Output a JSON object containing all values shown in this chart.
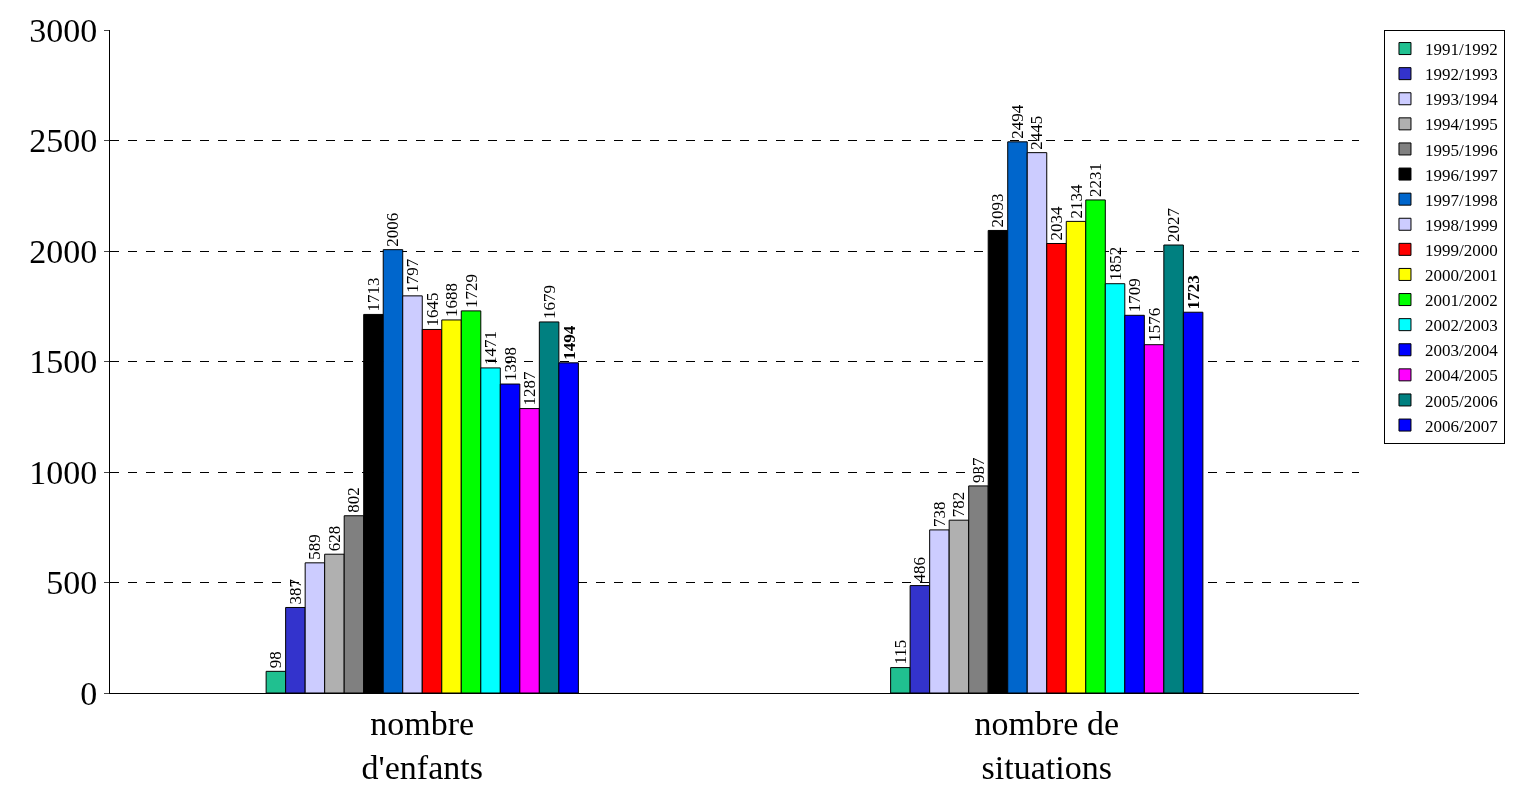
{
  "chart_data": {
    "type": "bar",
    "categories": [
      "nombre\nd'enfants",
      "nombre de\nsituations"
    ],
    "ylim": [
      0,
      3000
    ],
    "yticks": [
      0,
      500,
      1000,
      1500,
      2000,
      2500,
      3000
    ],
    "grid": "y",
    "legend": "right",
    "data_labels": true,
    "series": [
      {
        "name": "1991/1992",
        "color": "#20c090",
        "values": [
          98,
          115
        ]
      },
      {
        "name": "1992/1993",
        "color": "#3333cc",
        "values": [
          387,
          486
        ]
      },
      {
        "name": "1993/1994",
        "color": "#ccccff",
        "values": [
          589,
          738
        ]
      },
      {
        "name": "1994/1995",
        "color": "#b0b0b0",
        "values": [
          628,
          782
        ]
      },
      {
        "name": "1995/1996",
        "color": "#808080",
        "values": [
          802,
          937
        ]
      },
      {
        "name": "1996/1997",
        "color": "#000000",
        "values": [
          1713,
          2093
        ]
      },
      {
        "name": "1997/1998",
        "color": "#0066cc",
        "values": [
          2006,
          2494
        ]
      },
      {
        "name": "1998/1999",
        "color": "#ccccff",
        "values": [
          1797,
          2445
        ]
      },
      {
        "name": "1999/2000",
        "color": "#ff0000",
        "values": [
          1645,
          2034
        ]
      },
      {
        "name": "2000/2001",
        "color": "#ffff00",
        "values": [
          1688,
          2134
        ]
      },
      {
        "name": "2001/2002",
        "color": "#00ff00",
        "values": [
          1729,
          2231
        ]
      },
      {
        "name": "2002/2003",
        "color": "#00ffff",
        "values": [
          1471,
          1852
        ]
      },
      {
        "name": "2003/2004",
        "color": "#0000ff",
        "values": [
          1398,
          1709
        ]
      },
      {
        "name": "2004/2005",
        "color": "#ff00ff",
        "values": [
          1287,
          1576
        ]
      },
      {
        "name": "2005/2006",
        "color": "#008080",
        "values": [
          1679,
          2027
        ]
      },
      {
        "name": "2006/2007",
        "color": "#0000ff",
        "values": [
          1494,
          1723
        ]
      }
    ]
  }
}
